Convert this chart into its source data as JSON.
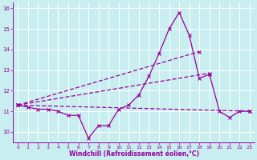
{
  "xlabel": "Windchill (Refroidissement éolien,°C)",
  "background_color": "#c8eef0",
  "grid_color": "#ffffff",
  "line_color": "#990099",
  "xlim": [
    -0.5,
    23.5
  ],
  "ylim": [
    9.5,
    16.3
  ],
  "yticks": [
    10,
    11,
    12,
    13,
    14,
    15,
    16
  ],
  "xticks": [
    0,
    1,
    2,
    3,
    4,
    5,
    6,
    7,
    8,
    9,
    10,
    11,
    12,
    13,
    14,
    15,
    16,
    17,
    18,
    19,
    20,
    21,
    22,
    23
  ],
  "series1_x": [
    0,
    1,
    2,
    3,
    4,
    5,
    6,
    7,
    8,
    9,
    10,
    11,
    12,
    13,
    14,
    15,
    16,
    17,
    18,
    19,
    20,
    21,
    22,
    23
  ],
  "series1_y": [
    11.3,
    11.2,
    11.1,
    11.1,
    11.0,
    10.8,
    10.8,
    9.7,
    10.3,
    10.3,
    11.1,
    11.3,
    11.8,
    12.7,
    13.8,
    15.0,
    15.8,
    14.7,
    12.6,
    12.8,
    11.0,
    10.7,
    11.0,
    11.0
  ],
  "series2_x": [
    0,
    23
  ],
  "series2_y": [
    11.3,
    11.0
  ],
  "series3_x": [
    0,
    19
  ],
  "series3_y": [
    11.3,
    12.85
  ],
  "series4_x": [
    0,
    18
  ],
  "series4_y": [
    11.3,
    13.9
  ]
}
